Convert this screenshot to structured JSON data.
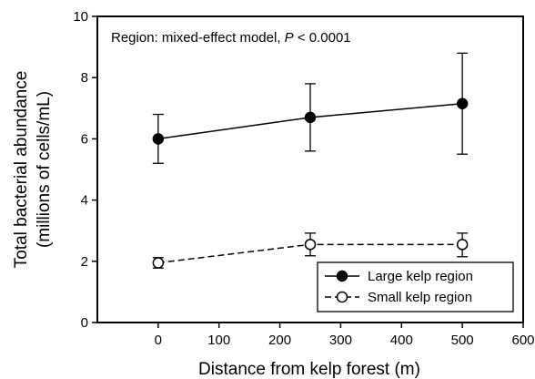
{
  "chart_data": {
    "type": "line",
    "title": "",
    "xlabel": "Distance from kelp forest (m)",
    "ylabel_line1": "Total bacterial abundance",
    "ylabel_line2": "(millions of cells/mL)",
    "annotation_prefix": "Region: mixed-effect model, ",
    "annotation_p": "P",
    "annotation_suffix": " < 0.0001",
    "xlim": [
      -100,
      600
    ],
    "ylim": [
      0,
      10
    ],
    "xticks": [
      0,
      100,
      200,
      300,
      400,
      500,
      600
    ],
    "yticks": [
      0,
      2,
      4,
      6,
      8,
      10
    ],
    "grid": false,
    "legend_position": "bottom-right",
    "series": [
      {
        "name": "Large kelp region",
        "marker": "filled-circle",
        "line_style": "solid",
        "x": [
          0,
          250,
          500
        ],
        "y": [
          6.0,
          6.7,
          7.15
        ],
        "err_low": [
          5.2,
          5.6,
          5.5
        ],
        "err_high": [
          6.8,
          7.8,
          8.8
        ]
      },
      {
        "name": "Small kelp region",
        "marker": "open-circle",
        "line_style": "dashed",
        "x": [
          0,
          250,
          500
        ],
        "y": [
          1.95,
          2.55,
          2.55
        ],
        "err_low": [
          1.78,
          2.18,
          2.15
        ],
        "err_high": [
          2.12,
          2.92,
          2.92
        ]
      }
    ]
  }
}
